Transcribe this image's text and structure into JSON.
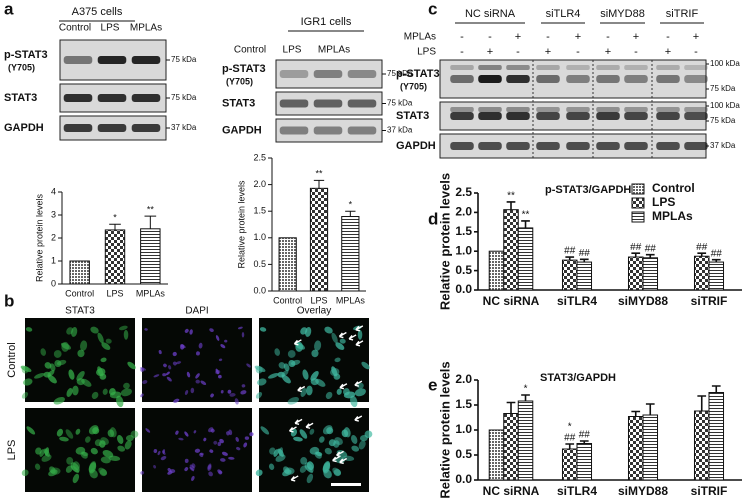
{
  "panel_labels": [
    "a",
    "b",
    "c",
    "d",
    "e"
  ],
  "blots": [
    {
      "title": "A375 cells",
      "lanes": [
        "Control",
        "LPS",
        "MPLAs"
      ],
      "rows": [
        {
          "label": "p-STAT3",
          "sublabel": "(Y705)",
          "markers": [
            "75 kDa"
          ]
        },
        {
          "label": "STAT3",
          "markers": [
            "75 kDa"
          ]
        },
        {
          "label": "GAPDH",
          "markers": [
            "37 kDa"
          ]
        }
      ]
    },
    {
      "title": "IGR1 cells",
      "lanes": [
        "Control",
        "LPS",
        "MPLAs"
      ],
      "rows": [
        {
          "label": "p-STAT3",
          "sublabel": "(Y705)",
          "markers": [
            "75 kDa"
          ]
        },
        {
          "label": "STAT3",
          "markers": [
            "75 kDa"
          ]
        },
        {
          "label": "GAPDH",
          "markers": [
            "37 kDa"
          ]
        }
      ]
    },
    {
      "groups": [
        "NC siRNA",
        "siTLR4",
        "siMYD88",
        "siTRIF"
      ],
      "treatments": [
        {
          "label": "MPLAs",
          "signs": [
            "-",
            "-",
            "+",
            "-",
            "+",
            "-",
            "+",
            "-",
            "+"
          ]
        },
        {
          "label": "LPS",
          "signs": [
            "-",
            "+",
            "-",
            "+",
            "-",
            "+",
            "-",
            "+",
            "-"
          ]
        }
      ],
      "rows": [
        {
          "label": "p-STAT3",
          "sublabel": "(Y705)",
          "markers": [
            "100 kDa",
            "75 kDa"
          ]
        },
        {
          "label": "STAT3",
          "markers": [
            "100 kDa",
            "75 kDa"
          ]
        },
        {
          "label": "GAPDH",
          "markers": [
            "37 kDa"
          ]
        }
      ]
    }
  ],
  "microscopy": {
    "columns": [
      "STAT3",
      "DAPI",
      "Overlay"
    ],
    "rows": [
      "Control",
      "LPS"
    ]
  },
  "chart_data": [
    {
      "type": "bar",
      "ylabel": "Relative protein levels",
      "categories": [
        "Control",
        "LPS",
        "MPLAs"
      ],
      "values": [
        1,
        2.35,
        2.4
      ],
      "errors": [
        0,
        0.25,
        0.55
      ],
      "annotations": [
        null,
        "*",
        "**"
      ],
      "patterns": [
        "hatch",
        "check",
        "hlines"
      ],
      "ylim": [
        0,
        4
      ],
      "yticks": [
        0,
        1,
        2,
        3,
        4
      ]
    },
    {
      "type": "bar",
      "ylabel": "Relative protein levels",
      "categories": [
        "Control",
        "LPS",
        "MPLAs"
      ],
      "values": [
        1,
        1.93,
        1.4
      ],
      "errors": [
        0,
        0.15,
        0.1
      ],
      "annotations": [
        null,
        "**",
        "*"
      ],
      "patterns": [
        "hatch",
        "check",
        "hlines"
      ],
      "ylim": [
        0,
        2.5
      ],
      "yticks": [
        {
          "value": 0,
          "label": "0.0"
        },
        {
          "value": 0.5,
          "label": "0.5"
        },
        {
          "value": 1,
          "label": "1.0"
        },
        {
          "value": 1.5,
          "label": "1.5"
        },
        {
          "value": 2,
          "label": "2.0"
        },
        {
          "value": 2.5,
          "label": "2.5"
        }
      ]
    },
    {
      "type": "bar",
      "title": "p-STAT3/GAPDH",
      "ylabel": "Relative protein levels",
      "legend": "top-right",
      "categories": [
        "NC siRNA",
        "siTLR4",
        "siMYD88",
        "siTRIF"
      ],
      "series": [
        {
          "name": "Control",
          "pattern": "hatch",
          "values": [
            1,
            null,
            null,
            null
          ],
          "errors": [
            0,
            null,
            null,
            null
          ],
          "annotations": [
            null,
            null,
            null,
            null
          ]
        },
        {
          "name": "LPS",
          "pattern": "check",
          "values": [
            2.07,
            0.77,
            0.85,
            0.87
          ],
          "errors": [
            0.2,
            0.08,
            0.1,
            0.08
          ],
          "annotations": [
            "**",
            "##",
            "##",
            "##"
          ]
        },
        {
          "name": "MPLAs",
          "pattern": "hlines",
          "values": [
            1.6,
            0.72,
            0.83,
            0.72
          ],
          "errors": [
            0.18,
            0.07,
            0.08,
            0.06
          ],
          "annotations": [
            "**",
            "##",
            "##",
            "##"
          ]
        }
      ],
      "ylim": [
        0,
        2.5
      ],
      "yticks": [
        {
          "value": 0,
          "label": "0.0"
        },
        {
          "value": 0.5,
          "label": "0.5"
        },
        {
          "value": 1,
          "label": "1.0"
        },
        {
          "value": 1.5,
          "label": "1.5"
        },
        {
          "value": 2,
          "label": "2.0"
        },
        {
          "value": 2.5,
          "label": "2.5"
        }
      ]
    },
    {
      "type": "bar",
      "title": "STAT3/GAPDH",
      "ylabel": "Relative protein levels",
      "categories": [
        "NC siRNA",
        "siTLR4",
        "siMYD88",
        "siTRIF"
      ],
      "series": [
        {
          "name": "Control",
          "pattern": "hatch",
          "values": [
            1,
            null,
            null,
            null
          ],
          "errors": [
            0,
            null,
            null,
            null
          ],
          "annotations": [
            null,
            null,
            null,
            null
          ]
        },
        {
          "name": "LPS",
          "pattern": "check",
          "values": [
            1.33,
            0.62,
            1.27,
            1.38
          ],
          "errors": [
            0.22,
            0.1,
            0.1,
            0.3
          ],
          "annotations": [
            null,
            [
              "*",
              "##"
            ],
            null,
            null
          ]
        },
        {
          "name": "MPLAs",
          "pattern": "hlines",
          "values": [
            1.58,
            0.73,
            1.3,
            1.75
          ],
          "errors": [
            0.12,
            0.05,
            0.22,
            0.13
          ],
          "annotations": [
            "*",
            "##",
            null,
            null
          ]
        }
      ],
      "ylim": [
        0,
        2
      ],
      "yticks": [
        {
          "value": 0,
          "label": "0.0"
        },
        {
          "value": 0.5,
          "label": "0.5"
        },
        {
          "value": 1,
          "label": "1.0"
        },
        {
          "value": 1.5,
          "label": "1.5"
        },
        {
          "value": 2,
          "label": "2.0"
        }
      ]
    }
  ]
}
